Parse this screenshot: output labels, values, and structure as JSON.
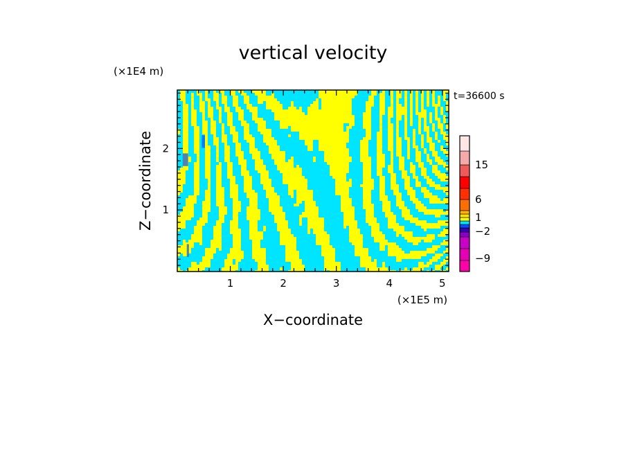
{
  "chart_data": {
    "type": "heatmap",
    "title": "vertical velocity",
    "xlabel": "X−coordinate",
    "ylabel": "Z−coordinate",
    "x_unit": "(×1E5 m)",
    "y_unit": "(×1E4 m)",
    "time_label": "t=36600 s",
    "xlim": [
      0,
      5.12
    ],
    "ylim": [
      0,
      2.95
    ],
    "x_ticks": [
      1,
      2,
      3,
      4,
      5
    ],
    "x_tick_labels": [
      "1",
      "2",
      "3",
      "4",
      "5"
    ],
    "y_ticks": [
      1,
      2
    ],
    "y_tick_labels": [
      "1",
      "2"
    ],
    "field_colors": {
      "negative": "#00e5ff",
      "positive": "#ffff00"
    },
    "colorbar": {
      "levels": [
        -12,
        -9,
        -6,
        -4,
        -2,
        -1,
        -0.5,
        0,
        0.5,
        1,
        2,
        4,
        6,
        9,
        12,
        15,
        20
      ],
      "colors": [
        "#ff00aa",
        "#e600b4",
        "#c800c8",
        "#8a00c8",
        "#3c00b4",
        "#0050ff",
        "#00e5ff",
        "#ffff00",
        "#ffe000",
        "#ffb400",
        "#ff6e00",
        "#ff3000",
        "#ff0000",
        "#f05a5a",
        "#f5aaaa",
        "#ffe6e6"
      ],
      "tick_values": [
        15,
        6,
        1,
        -2,
        -9
      ],
      "tick_labels": [
        "15",
        "6",
        "1",
        "−2",
        "−9"
      ]
    }
  }
}
